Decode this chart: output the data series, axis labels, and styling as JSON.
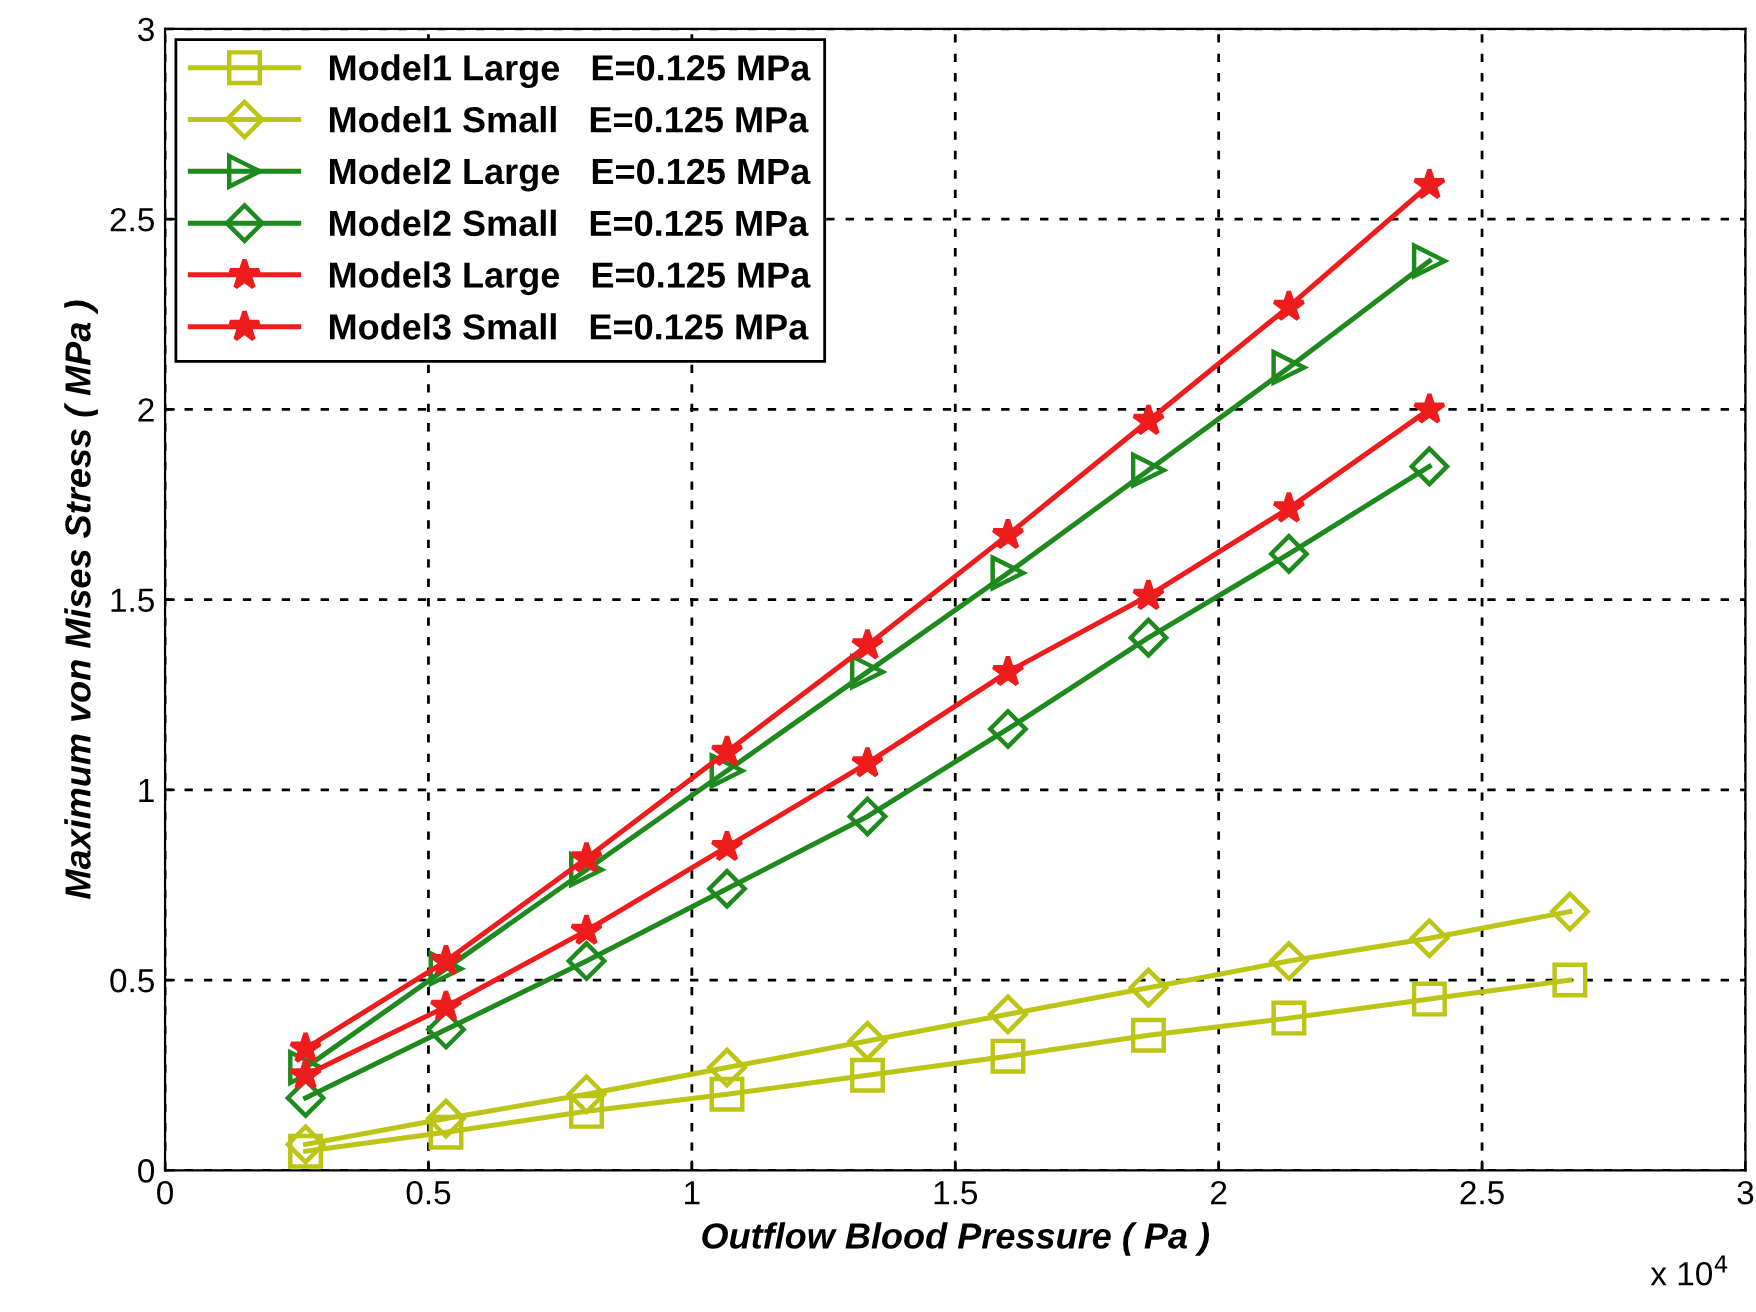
{
  "chart_data": {
    "type": "line",
    "xlabel": "Outflow Blood Pressure ( Pa )",
    "ylabel": "Maximum von Mises Stress ( MPa )",
    "xlim": [
      0,
      3
    ],
    "xticks": [
      0,
      0.5,
      1,
      1.5,
      2,
      2.5,
      3
    ],
    "ylim": [
      0,
      3
    ],
    "yticks": [
      0,
      0.5,
      1,
      1.5,
      2,
      2.5,
      3
    ],
    "grid": true,
    "legend": "top left",
    "annotations": [
      "x 10$^{4}$"
    ],
    "x": [
      0.2667,
      0.5333,
      0.8,
      1.0667,
      1.3333,
      1.6,
      1.8667,
      2.1333,
      2.4,
      2.6667
    ],
    "series": [
      {
        "name": "Model1 Large   E=0.125 MPa",
        "color": "#bcc414",
        "marker": "square",
        "values": [
          0.05,
          0.1,
          0.155,
          0.2,
          0.25,
          0.3,
          0.355,
          0.4,
          0.45,
          0.5
        ]
      },
      {
        "name": "Model1 Small   E=0.125 MPa",
        "color": "#bcc414",
        "marker": "diamond",
        "values": [
          0.068,
          0.136,
          0.2,
          0.27,
          0.34,
          0.41,
          0.48,
          0.55,
          0.61,
          0.68
        ]
      },
      {
        "name": "Model2 Large   E=0.125 MPa",
        "color": "#1e8a1e",
        "marker": "triangle",
        "x": [
          0.2667,
          0.5333,
          0.8,
          1.0667,
          1.3333,
          1.6,
          1.8667,
          2.1333,
          2.4
        ],
        "values": [
          0.27,
          0.53,
          0.79,
          1.05,
          1.31,
          1.57,
          1.84,
          2.11,
          2.39
        ]
      },
      {
        "name": "Model2 Small   E=0.125 MPa",
        "color": "#1e8a1e",
        "marker": "diamond",
        "x": [
          0.2667,
          0.5333,
          0.8,
          1.0667,
          1.3333,
          1.6,
          1.8667,
          2.1333,
          2.4
        ],
        "values": [
          0.19,
          0.37,
          0.55,
          0.74,
          0.93,
          1.16,
          1.4,
          1.62,
          1.85
        ]
      },
      {
        "name": "Model3 Large   E=0.125 MPa",
        "color": "#ee1c1c",
        "marker": "star",
        "x": [
          0.2667,
          0.5333,
          0.8,
          1.0667,
          1.3333,
          1.6,
          1.8667,
          2.1333,
          2.4
        ],
        "values": [
          0.32,
          0.55,
          0.82,
          1.1,
          1.38,
          1.67,
          1.97,
          2.27,
          2.59
        ]
      },
      {
        "name": "Model3 Small   E=0.125 MPa",
        "color": "#ee1c1c",
        "marker": "star",
        "x": [
          0.2667,
          0.5333,
          0.8,
          1.0667,
          1.3333,
          1.6,
          1.8667,
          2.1333,
          2.4
        ],
        "values": [
          0.25,
          0.43,
          0.63,
          0.85,
          1.07,
          1.31,
          1.51,
          1.74,
          2.0
        ]
      }
    ]
  }
}
